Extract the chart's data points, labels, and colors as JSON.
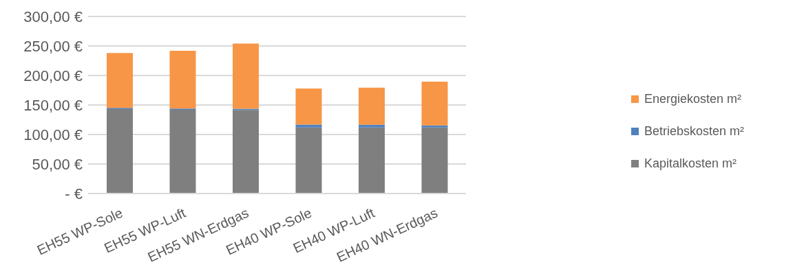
{
  "chart_data": {
    "type": "bar",
    "stacked": true,
    "categories": [
      "EH55 WP-Sole",
      "EH55 WP-Luft",
      "EH55 WN-Erdgas",
      "EH40 WP-Sole",
      "EH40 WP-Luft",
      "EH40 WN-Erdgas"
    ],
    "series": [
      {
        "name": "Kapitalkosten m²",
        "color": "#7f7f7f",
        "values": [
          143,
          142,
          141.5,
          112,
          112,
          112
        ]
      },
      {
        "name": "Betriebskosten m²",
        "color": "#4f81bd",
        "values": [
          2,
          2,
          2,
          5,
          4.5,
          3.5
        ]
      },
      {
        "name": "Energiekosten m²",
        "color": "#f79646",
        "values": [
          93,
          98,
          110.5,
          61,
          63,
          74
        ]
      }
    ],
    "ylim": [
      0,
      300
    ],
    "yticks": [
      {
        "value": 0,
        "label": "-   €"
      },
      {
        "value": 50,
        "label": "50,00 €"
      },
      {
        "value": 100,
        "label": "100,00 €"
      },
      {
        "value": 150,
        "label": "150,00 €"
      },
      {
        "value": 200,
        "label": "200,00 €"
      },
      {
        "value": 250,
        "label": "250,00 €"
      },
      {
        "value": 300,
        "label": "300,00 €"
      }
    ],
    "grid": "y",
    "legend": "right"
  }
}
